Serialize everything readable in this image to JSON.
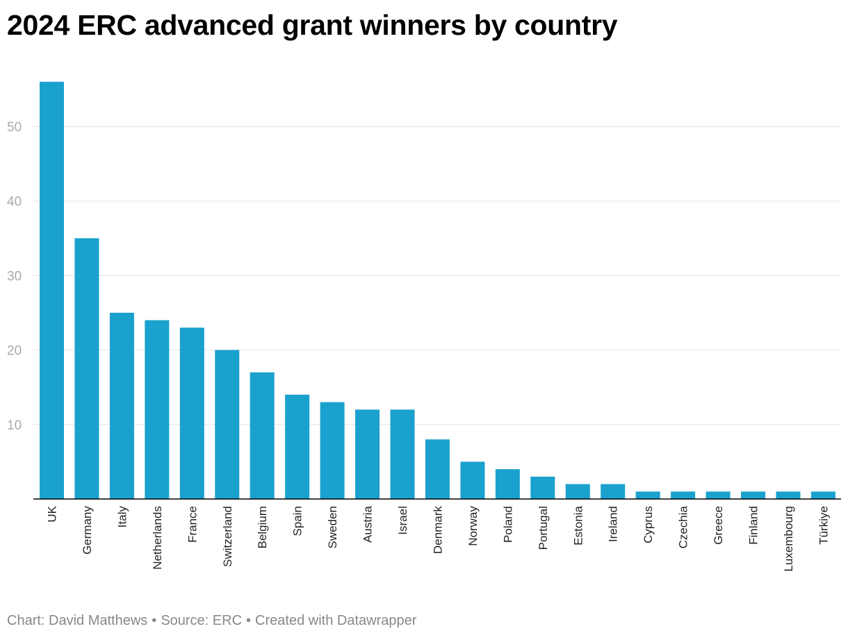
{
  "chart_data": {
    "type": "bar",
    "title": "2024 ERC advanced grant winners by country",
    "xlabel": "",
    "ylabel": "",
    "ylim": [
      0,
      56
    ],
    "yticks": [
      10,
      20,
      30,
      40,
      50
    ],
    "grid": true,
    "bar_color": "#1aa1ce",
    "categories": [
      "UK",
      "Germany",
      "Italy",
      "Netherlands",
      "France",
      "Switzerland",
      "Belgium",
      "Spain",
      "Sweden",
      "Austria",
      "Israel",
      "Denmark",
      "Norway",
      "Poland",
      "Portugal",
      "Estonia",
      "Ireland",
      "Cyprus",
      "Czechia",
      "Greece",
      "Finland",
      "Luxembourg",
      "Türkiye"
    ],
    "values": [
      56,
      35,
      25,
      24,
      23,
      20,
      17,
      14,
      13,
      12,
      12,
      8,
      5,
      4,
      3,
      2,
      2,
      1,
      1,
      1,
      1,
      1,
      1
    ]
  },
  "footer": {
    "chart_credit": "Chart: David Matthews",
    "source": "Source: ERC",
    "created_with": "Created with Datawrapper",
    "separator": "•"
  }
}
